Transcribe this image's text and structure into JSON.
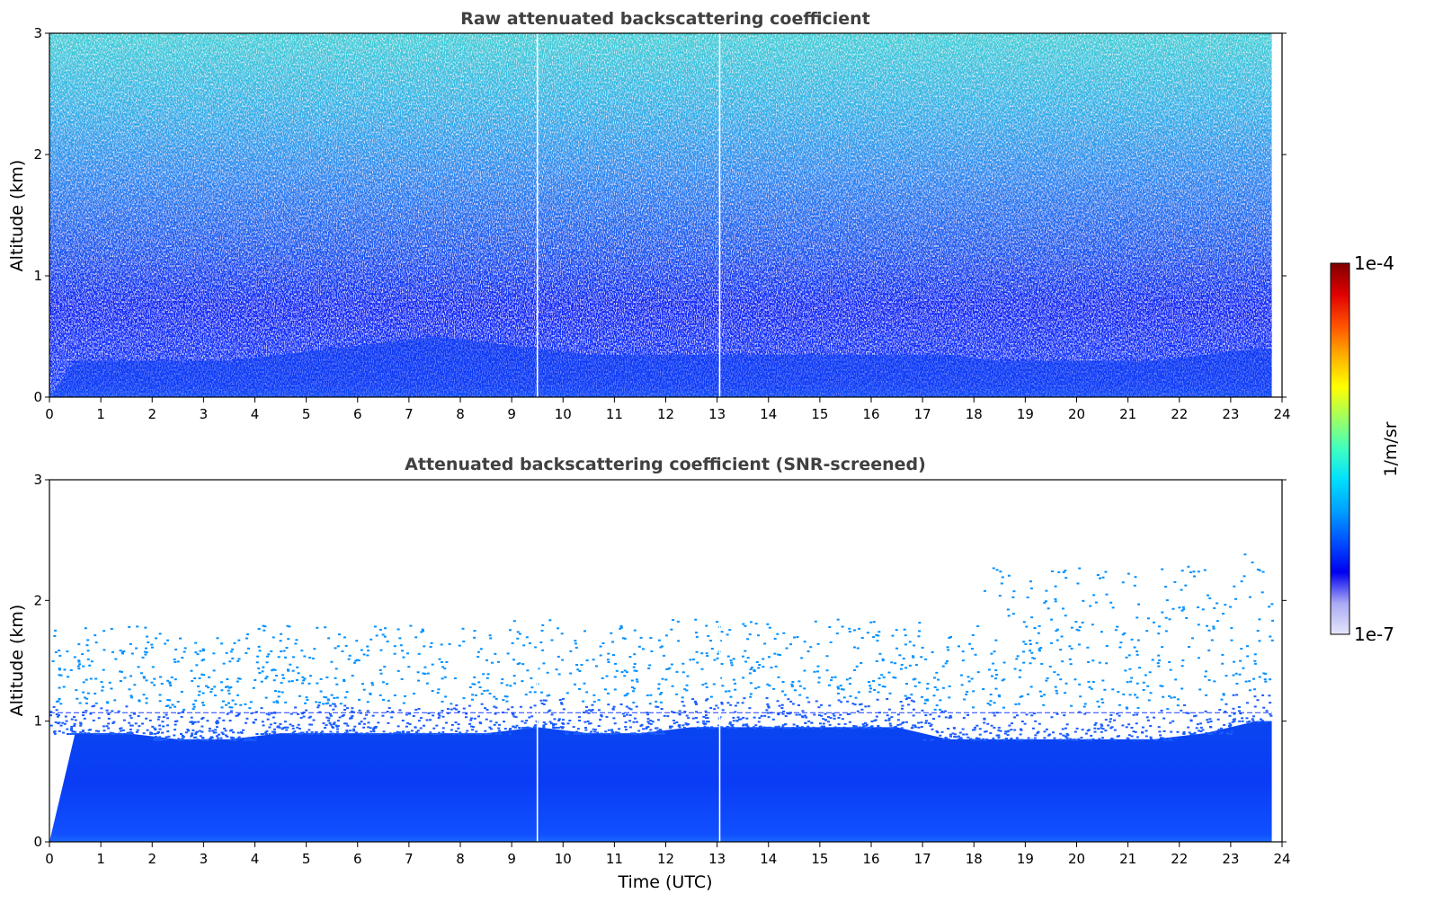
{
  "chart_data": [
    {
      "type": "heatmap",
      "title": "Raw attenuated backscattering coefficient",
      "xlabel": "",
      "ylabel": "Altitude (km)",
      "xlim": [
        0,
        24
      ],
      "ylim": [
        0,
        3
      ],
      "x_ticks": [
        "0",
        "1",
        "2",
        "3",
        "4",
        "5",
        "6",
        "7",
        "8",
        "9",
        "10",
        "11",
        "12",
        "13",
        "14",
        "15",
        "16",
        "17",
        "18",
        "19",
        "20",
        "21",
        "22",
        "23",
        "24"
      ],
      "y_ticks": [
        "0",
        "1",
        "2",
        "3"
      ],
      "data_end_time": 23.8,
      "data_gaps_utc": [
        9.5,
        13.05
      ],
      "description_values": {
        "near_surface_layer_top_km": [
          0.3,
          0.3,
          0.3,
          0.3,
          0.35,
          0.4,
          0.45,
          0.5,
          0.45,
          0.4,
          0.35,
          0.35,
          0.35,
          0.35,
          0.35,
          0.35,
          0.35,
          0.35,
          0.3,
          0.3,
          0.3,
          0.3,
          0.35,
          0.4
        ],
        "noise_increase_above_km": 1.0
      }
    },
    {
      "type": "heatmap",
      "title": "Attenuated backscattering coefficient (SNR-screened)",
      "xlabel": "Time (UTC)",
      "ylabel": "Altitude (km)",
      "xlim": [
        0,
        24
      ],
      "ylim": [
        0,
        3
      ],
      "x_ticks": [
        "0",
        "1",
        "2",
        "3",
        "4",
        "5",
        "6",
        "7",
        "8",
        "9",
        "10",
        "11",
        "12",
        "13",
        "14",
        "15",
        "16",
        "17",
        "18",
        "19",
        "20",
        "21",
        "22",
        "23",
        "24"
      ],
      "y_ticks": [
        "0",
        "1",
        "2",
        "3"
      ],
      "data_end_time": 23.8,
      "data_gaps_utc": [
        9.5,
        13.05
      ],
      "description_values": {
        "screened_layer_top_km": [
          0.9,
          0.9,
          0.85,
          0.85,
          0.9,
          0.9,
          0.9,
          0.9,
          0.9,
          0.95,
          0.9,
          0.9,
          0.95,
          0.95,
          0.95,
          0.95,
          0.95,
          0.85,
          0.85,
          0.85,
          0.85,
          0.85,
          0.9,
          1.0
        ],
        "reference_line_km": 1.07
      }
    }
  ],
  "colorbar": {
    "label": "1/m/sr",
    "min_label": "1e-7",
    "max_label": "1e-4",
    "scale": "log",
    "colormap_stops": [
      "#e6e6fa",
      "#aaaaf5",
      "#0000f0",
      "#0050ff",
      "#00a0ff",
      "#00e0ff",
      "#40ffc0",
      "#a0ff60",
      "#ffff00",
      "#ffb000",
      "#ff5000",
      "#e00000",
      "#800000"
    ]
  }
}
